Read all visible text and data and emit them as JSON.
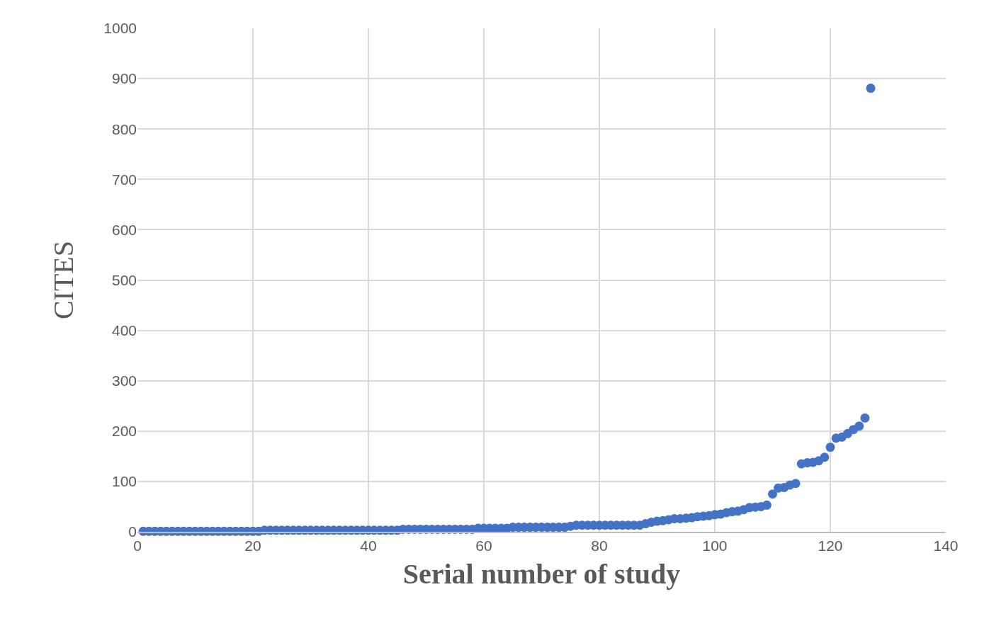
{
  "chart_data": {
    "type": "scatter",
    "xlabel": "Serial number of study",
    "ylabel": "CITES",
    "x": [
      1,
      2,
      3,
      4,
      5,
      6,
      7,
      8,
      9,
      10,
      11,
      12,
      13,
      14,
      15,
      16,
      17,
      18,
      19,
      20,
      21,
      22,
      23,
      24,
      25,
      26,
      27,
      28,
      29,
      30,
      31,
      32,
      33,
      34,
      35,
      36,
      37,
      38,
      39,
      40,
      41,
      42,
      43,
      44,
      45,
      46,
      47,
      48,
      49,
      50,
      51,
      52,
      53,
      54,
      55,
      56,
      57,
      58,
      59,
      60,
      61,
      62,
      63,
      64,
      65,
      66,
      67,
      68,
      69,
      70,
      71,
      72,
      73,
      74,
      75,
      76,
      77,
      78,
      79,
      80,
      81,
      82,
      83,
      84,
      85,
      86,
      87,
      88,
      89,
      90,
      91,
      92,
      93,
      94,
      95,
      96,
      97,
      98,
      99,
      100,
      101,
      102,
      103,
      104,
      105,
      106,
      107,
      108,
      109,
      110,
      111,
      112,
      113,
      114,
      115,
      116,
      117,
      118,
      119,
      120,
      121,
      122,
      123,
      124,
      125,
      126,
      127
    ],
    "series": [
      {
        "color": "#4472c4",
        "values": [
          1,
          1,
          1,
          1,
          1,
          1,
          1,
          1,
          1,
          1,
          1,
          1,
          1,
          1,
          1,
          1,
          1,
          1,
          1,
          1,
          1,
          3,
          3,
          3,
          3,
          3,
          3,
          3,
          3,
          3,
          3,
          3,
          3,
          3,
          3,
          3,
          3,
          3,
          3,
          3,
          3,
          3,
          3,
          3,
          3,
          5,
          5,
          5,
          5,
          5,
          5,
          5,
          5,
          5,
          5,
          5,
          5,
          5,
          7,
          7,
          7,
          7,
          7,
          7,
          9,
          9,
          9,
          9,
          9,
          9,
          9,
          9,
          9,
          9,
          11,
          13,
          13,
          13,
          13,
          13,
          13,
          13,
          13,
          13,
          13,
          13,
          13,
          16,
          19,
          21,
          22,
          24,
          26,
          26,
          27,
          28,
          30,
          31,
          32,
          34,
          35,
          38,
          40,
          41,
          44,
          48,
          49,
          50,
          53,
          75,
          87,
          88,
          93,
          96,
          135,
          137,
          138,
          141,
          148,
          168,
          186,
          188,
          195,
          203,
          210,
          226,
          881
        ]
      }
    ],
    "xlim": [
      0,
      140
    ],
    "xticks": [
      0,
      20,
      40,
      60,
      80,
      100,
      120,
      140
    ],
    "ylim": [
      0,
      1000
    ],
    "yticks": [
      0,
      100,
      200,
      300,
      400,
      500,
      600,
      700,
      800,
      900,
      1000
    ],
    "grid": true,
    "marker": "circle"
  }
}
